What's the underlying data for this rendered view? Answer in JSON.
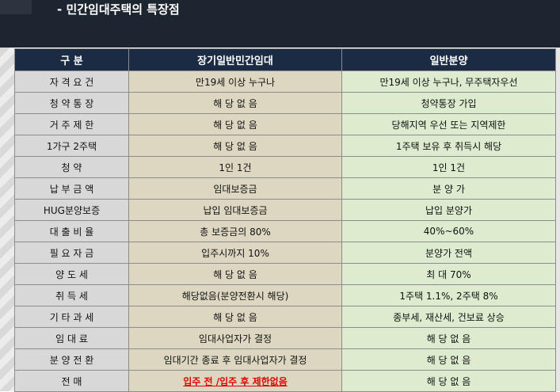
{
  "header": {
    "title": "- 민간임대주택의 특장점"
  },
  "colors": {
    "header_band": "#1d2530",
    "table_header": "#1b2b44",
    "col1_bg": "#d8d8d8",
    "col2_bg": "#ddd7c2",
    "col3_bg": "#ddebcf",
    "emphasis_text": "#e00000"
  },
  "table": {
    "headers": [
      "구          분",
      "장기일반민간임대",
      "일반분양"
    ],
    "rows": [
      {
        "label": "자 격 요 건",
        "rental": "만19세 이상 누구나",
        "sale": "만19세 이상 누구나, 무주택자우선"
      },
      {
        "label": "청 약 통 장",
        "rental": "해 당 없 음",
        "sale": "청약통장 가입"
      },
      {
        "label": "거 주 제 한",
        "rental": "해 당 없 음",
        "sale": "당해지역 우선 또는 지역제한"
      },
      {
        "label": "1가구 2주택",
        "rental": "해 당 없 음",
        "sale": "1주택 보유 후 취득시 해당"
      },
      {
        "label": "청          약",
        "rental": "1인 1건",
        "sale": "1인 1건"
      },
      {
        "label": "납 부 금 액",
        "rental": "임대보증금",
        "sale": "분 양 가"
      },
      {
        "label": "HUG분양보증",
        "rental": "납입 임대보증금",
        "sale": "납입 분양가"
      },
      {
        "label": "대 출 비 율",
        "rental": "총 보증금의 80%",
        "sale": "40%~60%"
      },
      {
        "label": "필 요 자 금",
        "rental": "입주시까지 10%",
        "sale": "분양가 전액"
      },
      {
        "label": "양   도   세",
        "rental": "해 당 없 음",
        "sale": "최 대 70%"
      },
      {
        "label": "취   득   세",
        "rental": "해당없음(분양전환시 해당)",
        "sale": "1주택 1.1%, 2주택 8%"
      },
      {
        "label": "기 타 과 세",
        "rental": "해 당 없 음",
        "sale": "종부세, 재산세, 건보료 상승"
      },
      {
        "label": "임   대   료",
        "rental": "임대사업자가 결정",
        "sale": "해 당 없 음"
      },
      {
        "label": "분 양 전 환",
        "rental": "임대기간 종료 후 임대사업자가 결정",
        "sale": "해 당 없 음"
      },
      {
        "label": "전          매",
        "rental": "입주 전 /입주 후 제한없음",
        "sale": "해 당 없 음"
      }
    ]
  }
}
